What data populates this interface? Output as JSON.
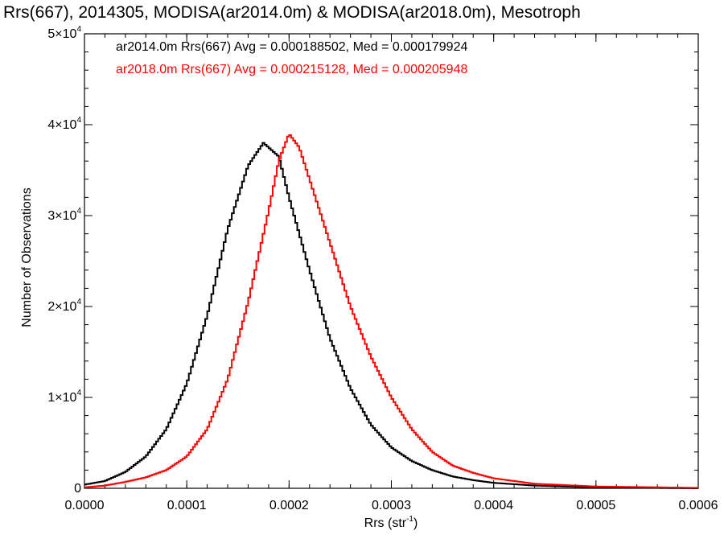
{
  "chart_data": {
    "type": "line",
    "title": "Rrs(667), 2014305, MODISA(ar2014.0m) & MODISA(ar2018.0m), Mesotroph",
    "xlabel": "Rrs (str",
    "xlabel_sup": "-1",
    "xlabel_end": ")",
    "ylabel": "Number of Observations",
    "xlim": [
      0.0,
      0.0006
    ],
    "ylim": [
      0,
      50000
    ],
    "x_ticks": [
      0.0,
      0.0001,
      0.0002,
      0.0003,
      0.0004,
      0.0005,
      0.0006
    ],
    "x_tick_labels": [
      "0.0000",
      "0.0001",
      "0.0002",
      "0.0003",
      "0.0004",
      "0.0005",
      "0.0006"
    ],
    "y_ticks": [
      0,
      10000,
      20000,
      30000,
      40000,
      50000
    ],
    "y_tick_labels": [
      {
        "base": "0",
        "exp": ""
      },
      {
        "base": "1×10",
        "exp": "4"
      },
      {
        "base": "2×10",
        "exp": "4"
      },
      {
        "base": "3×10",
        "exp": "4"
      },
      {
        "base": "4×10",
        "exp": "4"
      },
      {
        "base": "5×10",
        "exp": "4"
      }
    ],
    "grid": false,
    "legend_position": "top-left",
    "series": [
      {
        "name": "ar2014.0m",
        "legend": "ar2014.0m Rrs(667) Avg = 0.000188502, Med = 0.000179924",
        "color": "#000000",
        "points": [
          [
            0.0,
            400
          ],
          [
            2e-05,
            800
          ],
          [
            4e-05,
            1800
          ],
          [
            6e-05,
            3500
          ],
          [
            8e-05,
            6500
          ],
          [
            0.0001,
            11500
          ],
          [
            0.00012,
            19000
          ],
          [
            0.00014,
            28500
          ],
          [
            0.00016,
            35500
          ],
          [
            0.000175,
            38000
          ],
          [
            0.00019,
            36500
          ],
          [
            0.0002,
            32000
          ],
          [
            0.00022,
            24000
          ],
          [
            0.00024,
            16500
          ],
          [
            0.00026,
            11000
          ],
          [
            0.00028,
            7000
          ],
          [
            0.0003,
            4500
          ],
          [
            0.00032,
            3000
          ],
          [
            0.00034,
            2000
          ],
          [
            0.00036,
            1300
          ],
          [
            0.00038,
            900
          ],
          [
            0.0004,
            600
          ],
          [
            0.00044,
            300
          ],
          [
            0.0005,
            100
          ],
          [
            0.0006,
            0
          ]
        ]
      },
      {
        "name": "ar2018.0m",
        "legend": "ar2018.0m Rrs(667) Avg = 0.000215128, Med = 0.000205948",
        "color": "#ff0000",
        "points": [
          [
            0.0,
            100
          ],
          [
            2e-05,
            300
          ],
          [
            4e-05,
            700
          ],
          [
            6e-05,
            1200
          ],
          [
            8e-05,
            2000
          ],
          [
            0.0001,
            3500
          ],
          [
            0.00012,
            6500
          ],
          [
            0.00014,
            12000
          ],
          [
            0.00016,
            20500
          ],
          [
            0.00018,
            30500
          ],
          [
            0.00019,
            36000
          ],
          [
            0.0002,
            39000
          ],
          [
            0.00021,
            37500
          ],
          [
            0.00022,
            34000
          ],
          [
            0.00024,
            27000
          ],
          [
            0.00026,
            20000
          ],
          [
            0.00028,
            14500
          ],
          [
            0.0003,
            10000
          ],
          [
            0.00032,
            6500
          ],
          [
            0.00034,
            4000
          ],
          [
            0.00036,
            2500
          ],
          [
            0.00038,
            1700
          ],
          [
            0.0004,
            1100
          ],
          [
            0.00044,
            500
          ],
          [
            0.0005,
            200
          ],
          [
            0.0006,
            50
          ]
        ]
      }
    ]
  }
}
